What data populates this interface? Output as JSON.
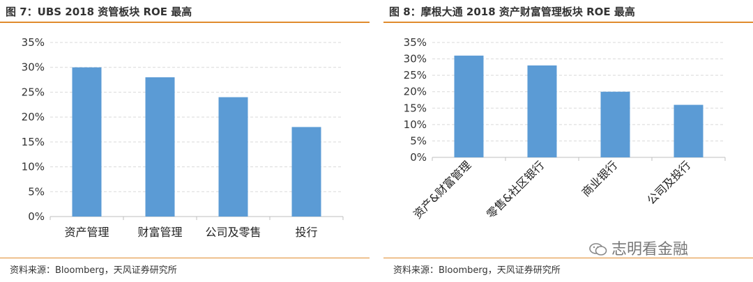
{
  "left": {
    "title": "图 7：UBS 2018 资管板块 ROE 最高",
    "source": "资料来源：Bloomberg，天风证券研究所"
  },
  "right": {
    "title": "图 8：摩根大通 2018 资产财富管理板块 ROE 最高",
    "source": "资料来源：Bloomberg，天风证券研究所"
  },
  "watermark": {
    "text": "志明看金融",
    "icon": "wechat-icon"
  },
  "colors": {
    "bar": "#5b9bd5",
    "grid": "#d9d9d9",
    "axis": "#bfbfbf",
    "accent_rule": "#e08a2c"
  },
  "chart_data": [
    {
      "type": "bar",
      "title": "",
      "categories": [
        "资产管理",
        "财富管理",
        "公司及零售",
        "投行"
      ],
      "values": [
        30,
        28,
        24,
        18
      ],
      "ylim": [
        0,
        35
      ],
      "yticks": [
        "0%",
        "5%",
        "10%",
        "15%",
        "20%",
        "25%",
        "30%",
        "35%"
      ],
      "grid": "dashed horizontal",
      "category_label_rotation": 0
    },
    {
      "type": "bar",
      "title": "",
      "categories": [
        "资产&财富管理",
        "零售&社区银行",
        "商业银行",
        "公司及投行"
      ],
      "values": [
        31,
        28,
        20,
        16
      ],
      "ylim": [
        0,
        35
      ],
      "yticks": [
        "0%",
        "5%",
        "10%",
        "15%",
        "20%",
        "25%",
        "30%",
        "35%"
      ],
      "grid": "dashed horizontal",
      "category_label_rotation": -45
    }
  ]
}
